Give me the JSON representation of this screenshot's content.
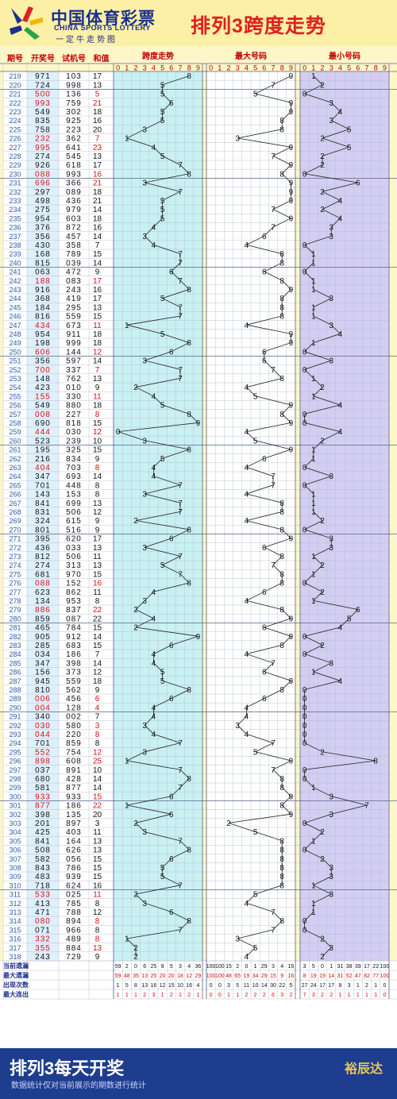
{
  "header": {
    "logo_cn": "中国体育彩票",
    "logo_en": "CHINA SPORTS LOTTERY",
    "logo_slogan": "一定牛走势图",
    "title": "排列3跨度走势"
  },
  "columns": {
    "period": "期号",
    "draw": "开奖号",
    "trial": "试机号",
    "sum": "和值",
    "span": "跨度走势",
    "max": "最大号码",
    "min": "最小号码"
  },
  "digits": [
    "0",
    "1",
    "2",
    "3",
    "4",
    "5",
    "6",
    "7",
    "8",
    "9"
  ],
  "chart_data": {
    "type": "table",
    "rows": [
      [
        "219",
        "971",
        "103",
        "17"
      ],
      [
        "220",
        "724",
        "998",
        "13"
      ],
      [
        "221",
        "500",
        "136",
        "5"
      ],
      [
        "222",
        "993",
        "759",
        "21"
      ],
      [
        "223",
        "549",
        "302",
        "18"
      ],
      [
        "224",
        "835",
        "925",
        "16"
      ],
      [
        "225",
        "758",
        "223",
        "20"
      ],
      [
        "226",
        "232",
        "362",
        "7"
      ],
      [
        "227",
        "995",
        "641",
        "23"
      ],
      [
        "228",
        "274",
        "545",
        "13"
      ],
      [
        "229",
        "926",
        "618",
        "17"
      ],
      [
        "230",
        "088",
        "993",
        "16"
      ],
      [
        "231",
        "696",
        "366",
        "21"
      ],
      [
        "232",
        "297",
        "089",
        "18"
      ],
      [
        "233",
        "498",
        "436",
        "21"
      ],
      [
        "234",
        "275",
        "979",
        "14"
      ],
      [
        "235",
        "954",
        "603",
        "18"
      ],
      [
        "236",
        "376",
        "872",
        "16"
      ],
      [
        "237",
        "356",
        "457",
        "14"
      ],
      [
        "238",
        "430",
        "358",
        "7"
      ],
      [
        "239",
        "168",
        "789",
        "15"
      ],
      [
        "240",
        "815",
        "039",
        "14"
      ],
      [
        "241",
        "063",
        "472",
        "9"
      ],
      [
        "242",
        "188",
        "083",
        "17"
      ],
      [
        "243",
        "916",
        "243",
        "16"
      ],
      [
        "244",
        "368",
        "419",
        "17"
      ],
      [
        "245",
        "184",
        "295",
        "13"
      ],
      [
        "246",
        "816",
        "559",
        "15"
      ],
      [
        "247",
        "434",
        "673",
        "11"
      ],
      [
        "248",
        "954",
        "911",
        "18"
      ],
      [
        "249",
        "198",
        "999",
        "18"
      ],
      [
        "250",
        "606",
        "144",
        "12"
      ],
      [
        "251",
        "356",
        "597",
        "14"
      ],
      [
        "252",
        "700",
        "337",
        "7"
      ],
      [
        "253",
        "148",
        "762",
        "13"
      ],
      [
        "254",
        "423",
        "010",
        "9"
      ],
      [
        "255",
        "155",
        "330",
        "11"
      ],
      [
        "256",
        "549",
        "880",
        "18"
      ],
      [
        "257",
        "008",
        "227",
        "8"
      ],
      [
        "258",
        "690",
        "818",
        "15"
      ],
      [
        "259",
        "444",
        "030",
        "12"
      ],
      [
        "260",
        "523",
        "239",
        "10"
      ],
      [
        "261",
        "195",
        "325",
        "15"
      ],
      [
        "262",
        "216",
        "834",
        "9"
      ],
      [
        "263",
        "404",
        "703",
        "8"
      ],
      [
        "264",
        "347",
        "693",
        "14"
      ],
      [
        "265",
        "701",
        "448",
        "8"
      ],
      [
        "266",
        "143",
        "153",
        "8"
      ],
      [
        "267",
        "841",
        "699",
        "13"
      ],
      [
        "268",
        "831",
        "506",
        "12"
      ],
      [
        "269",
        "324",
        "615",
        "9"
      ],
      [
        "270",
        "801",
        "516",
        "9"
      ],
      [
        "271",
        "395",
        "620",
        "17"
      ],
      [
        "272",
        "436",
        "033",
        "13"
      ],
      [
        "273",
        "812",
        "506",
        "11"
      ],
      [
        "274",
        "274",
        "313",
        "13"
      ],
      [
        "275",
        "681",
        "970",
        "15"
      ],
      [
        "276",
        "088",
        "152",
        "16"
      ],
      [
        "277",
        "623",
        "862",
        "11"
      ],
      [
        "278",
        "134",
        "953",
        "8"
      ],
      [
        "279",
        "886",
        "837",
        "22"
      ],
      [
        "280",
        "859",
        "087",
        "22"
      ],
      [
        "281",
        "465",
        "784",
        "15"
      ],
      [
        "282",
        "905",
        "912",
        "14"
      ],
      [
        "283",
        "285",
        "683",
        "15"
      ],
      [
        "284",
        "034",
        "186",
        "7"
      ],
      [
        "285",
        "347",
        "398",
        "14"
      ],
      [
        "286",
        "156",
        "373",
        "12"
      ],
      [
        "287",
        "945",
        "559",
        "18"
      ],
      [
        "288",
        "810",
        "562",
        "9"
      ],
      [
        "289",
        "006",
        "456",
        "6"
      ],
      [
        "290",
        "004",
        "128",
        "4"
      ],
      [
        "291",
        "340",
        "002",
        "7"
      ],
      [
        "292",
        "030",
        "580",
        "3"
      ],
      [
        "293",
        "044",
        "220",
        "8"
      ],
      [
        "294",
        "701",
        "859",
        "8"
      ],
      [
        "295",
        "552",
        "754",
        "12"
      ],
      [
        "296",
        "898",
        "608",
        "25"
      ],
      [
        "297",
        "037",
        "891",
        "10"
      ],
      [
        "298",
        "680",
        "428",
        "14"
      ],
      [
        "299",
        "581",
        "877",
        "14"
      ],
      [
        "300",
        "933",
        "933",
        "15"
      ],
      [
        "301",
        "877",
        "186",
        "22"
      ],
      [
        "302",
        "398",
        "135",
        "20"
      ],
      [
        "303",
        "201",
        "897",
        "3"
      ],
      [
        "304",
        "425",
        "403",
        "11"
      ],
      [
        "305",
        "841",
        "164",
        "13"
      ],
      [
        "306",
        "508",
        "626",
        "13"
      ],
      [
        "307",
        "582",
        "056",
        "15"
      ],
      [
        "308",
        "843",
        "786",
        "15"
      ],
      [
        "309",
        "483",
        "939",
        "15"
      ],
      [
        "310",
        "718",
        "624",
        "16"
      ],
      [
        "311",
        "533",
        "025",
        "11"
      ],
      [
        "312",
        "413",
        "785",
        "8"
      ],
      [
        "313",
        "471",
        "788",
        "12"
      ],
      [
        "314",
        "080",
        "894",
        "8"
      ],
      [
        "315",
        "071",
        "966",
        "8"
      ],
      [
        "316",
        "332",
        "489",
        "8"
      ],
      [
        "317",
        "355",
        "884",
        "13"
      ],
      [
        "318",
        "243",
        "729",
        "9"
      ]
    ],
    "stats": [
      {
        "label": "当前遗漏",
        "span": [
          "59",
          "2",
          "0",
          "6",
          "25",
          "9",
          "5",
          "3",
          "4",
          "36"
        ],
        "max": [
          "100",
          "100",
          "15",
          "2",
          "0",
          "1",
          "29",
          "3",
          "4",
          "16"
        ],
        "min": [
          "3",
          "5",
          "0",
          "1",
          "31",
          "38",
          "39",
          "17",
          "22",
          "100"
        ]
      },
      {
        "label": "最大遗漏",
        "span": [
          "59",
          "48",
          "35",
          "13",
          "25",
          "20",
          "20",
          "18",
          "12",
          "29"
        ],
        "max": [
          "100",
          "100",
          "48",
          "65",
          "19",
          "34",
          "29",
          "15",
          "9",
          "16"
        ],
        "min": [
          "8",
          "19",
          "19",
          "14",
          "31",
          "52",
          "47",
          "82",
          "77",
          "100"
        ]
      },
      {
        "label": "出现次数",
        "span": [
          "1",
          "5",
          "8",
          "13",
          "16",
          "12",
          "15",
          "10",
          "16",
          "4"
        ],
        "max": [
          "0",
          "0",
          "3",
          "5",
          "11",
          "10",
          "14",
          "30",
          "22",
          "5"
        ],
        "min": [
          "27",
          "24",
          "17",
          "17",
          "8",
          "3",
          "1",
          "2",
          "1",
          "0"
        ]
      },
      {
        "label": "最大连出",
        "span": [
          "1",
          "1",
          "1",
          "2",
          "3",
          "1",
          "2",
          "1",
          "2",
          "1"
        ],
        "max": [
          "0",
          "0",
          "1",
          "1",
          "2",
          "2",
          "2",
          "6",
          "3",
          "2"
        ],
        "min": [
          "7",
          "3",
          "2",
          "2",
          "1",
          "1",
          "1",
          "1",
          "1",
          "0"
        ]
      }
    ]
  },
  "footer": {
    "title": "排列3每天开奖",
    "note": "数据统计仅对当前展示的期数进行统计",
    "brand": "裕辰达"
  }
}
